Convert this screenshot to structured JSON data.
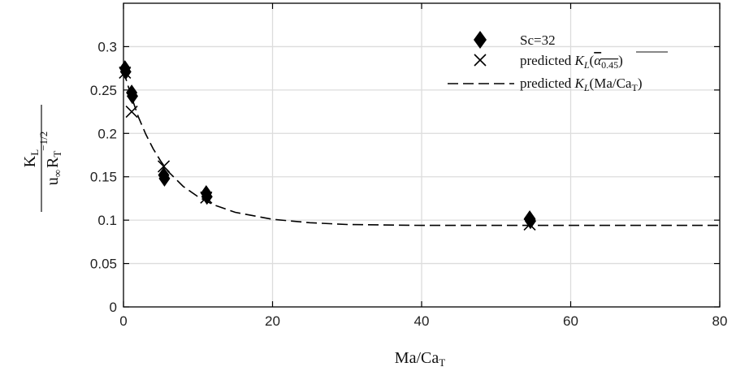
{
  "chart_data": {
    "type": "scatter",
    "xlabel": {
      "main": "Ma/Ca",
      "sub": "T"
    },
    "ylabel": {
      "numerator": {
        "main": "K",
        "sub": "L"
      },
      "denominator": {
        "main": "u",
        "sub": "∞",
        "main2": "R",
        "sub2": "T",
        "sup2": "−1/2"
      }
    },
    "xlim": [
      0,
      80
    ],
    "ylim": [
      0,
      0.35
    ],
    "xticks": [
      0,
      20,
      40,
      60,
      80
    ],
    "xtick_labels": [
      "0",
      "20",
      "40",
      "60",
      "80"
    ],
    "yticks": [
      0,
      0.05,
      0.1,
      0.15,
      0.2,
      0.25,
      0.3
    ],
    "ytick_labels": [
      "0",
      "0.05",
      "0.1",
      "0.15",
      "0.2",
      "0.25",
      "0.3"
    ],
    "grid": true,
    "legend_position": "top-right",
    "series": [
      {
        "name": "Sc=32",
        "marker": "diamond",
        "color": "#000000",
        "x": [
          0.2,
          0.3,
          1.1,
          1.2,
          5.4,
          5.5,
          11.1,
          11.2,
          54.5,
          54.6
        ],
        "y": [
          0.275,
          0.271,
          0.247,
          0.243,
          0.152,
          0.148,
          0.131,
          0.127,
          0.102,
          0.099
        ]
      },
      {
        "name": "predicted K_L(α_0.45)",
        "legend_parts": {
          "prefix": "predicted ",
          "k": "K",
          "ksub": "L",
          "alpha": "α",
          "alphasub": "0.45"
        },
        "marker": "x",
        "color": "#000000",
        "x": [
          0.2,
          1.1,
          5.4,
          11.1,
          54.5
        ],
        "y": [
          0.27,
          0.225,
          0.162,
          0.126,
          0.095
        ]
      },
      {
        "name": "predicted K_L(Ma/Ca_T)",
        "legend_parts": {
          "prefix": "predicted ",
          "k": "K",
          "ksub": "L",
          "arg": "Ma/Ca",
          "argsub": "T"
        },
        "line": "dashed",
        "color": "#000000",
        "x": [
          0,
          1,
          2,
          3,
          4,
          5,
          6,
          8,
          10,
          12,
          15,
          20,
          25,
          30,
          40,
          50,
          60,
          70,
          80
        ],
        "y": [
          0.272,
          0.244,
          0.219,
          0.199,
          0.182,
          0.168,
          0.156,
          0.139,
          0.127,
          0.118,
          0.109,
          0.101,
          0.097,
          0.095,
          0.094,
          0.094,
          0.094,
          0.094,
          0.094
        ]
      }
    ]
  }
}
